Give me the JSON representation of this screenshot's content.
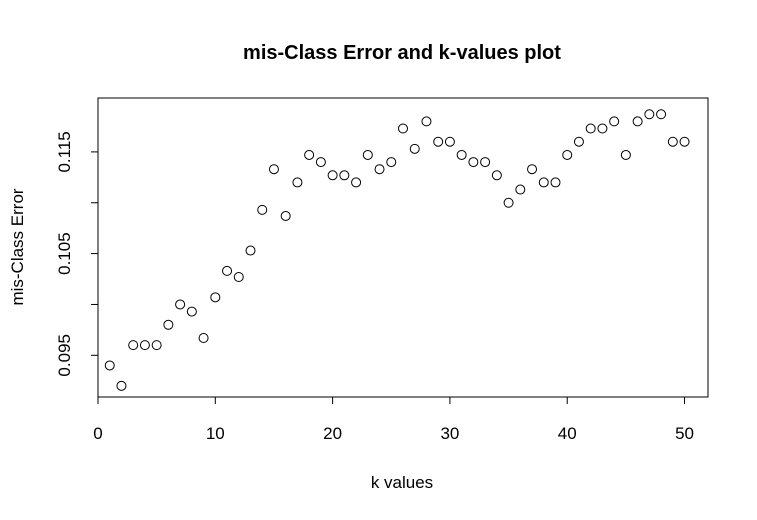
{
  "chart_data": {
    "type": "scatter",
    "title": "mis-Class Error and k-values plot",
    "xlabel": "k values",
    "ylabel": "mis-Class Error",
    "xlim": [
      0,
      52
    ],
    "ylim": [
      0.0909,
      0.1203
    ],
    "x_ticks": [
      0,
      10,
      20,
      30,
      40,
      50
    ],
    "x_tick_labels": [
      "0",
      "10",
      "20",
      "30",
      "40",
      "50"
    ],
    "y_ticks": [
      0.095,
      0.1,
      0.105,
      0.11,
      0.115
    ],
    "y_tick_labels": [
      "0.095",
      "",
      "0.105",
      "",
      "0.115"
    ],
    "grid": false,
    "legend": "none",
    "marker": "open-circle",
    "x": [
      1,
      2,
      3,
      4,
      5,
      6,
      7,
      8,
      9,
      10,
      11,
      12,
      13,
      14,
      15,
      16,
      17,
      18,
      19,
      20,
      21,
      22,
      23,
      24,
      25,
      26,
      27,
      28,
      29,
      30,
      31,
      32,
      33,
      34,
      35,
      36,
      37,
      38,
      39,
      40,
      41,
      42,
      43,
      44,
      45,
      46,
      47,
      48,
      49,
      50
    ],
    "y": [
      0.094,
      0.092,
      0.096,
      0.096,
      0.096,
      0.098,
      0.1,
      0.0993,
      0.0967,
      0.1007,
      0.1033,
      0.1027,
      0.1053,
      0.1093,
      0.1133,
      0.1087,
      0.112,
      0.1147,
      0.114,
      0.1127,
      0.1127,
      0.112,
      0.1147,
      0.1133,
      0.114,
      0.1173,
      0.1153,
      0.118,
      0.116,
      0.116,
      0.1147,
      0.114,
      0.114,
      0.1127,
      0.11,
      0.1113,
      0.1133,
      0.112,
      0.112,
      0.1147,
      0.116,
      0.1173,
      0.1173,
      0.118,
      0.1147,
      0.118,
      0.1187,
      0.1187,
      0.116,
      0.116
    ]
  }
}
